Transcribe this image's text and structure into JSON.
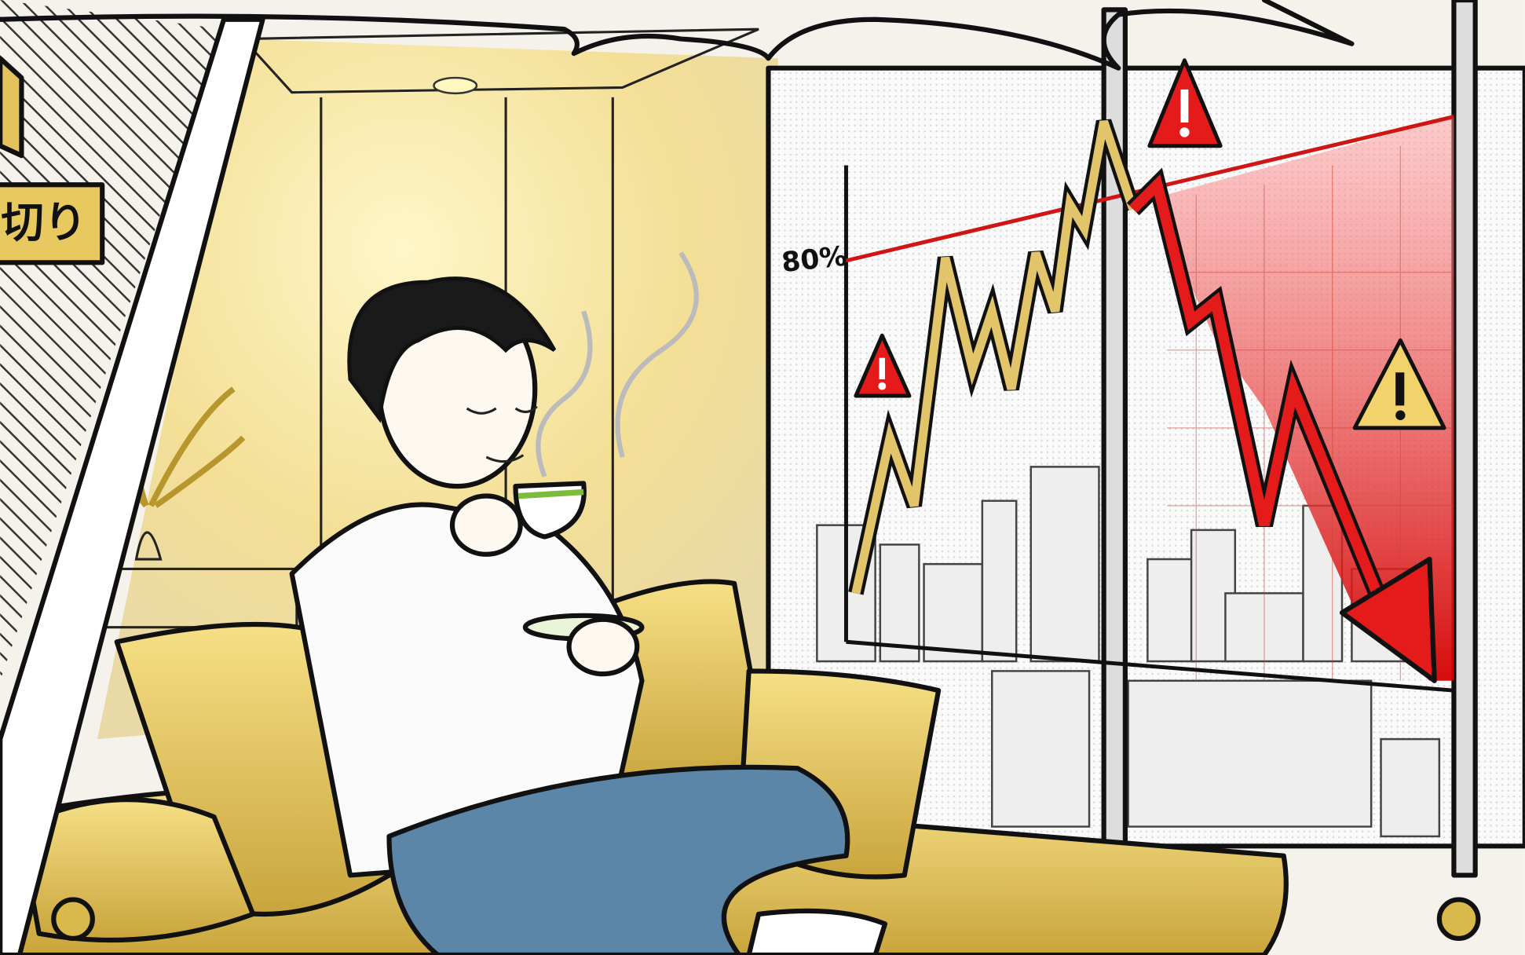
{
  "sign": {
    "label": "切り"
  },
  "window_chart": {
    "threshold_label": "80%"
  }
}
